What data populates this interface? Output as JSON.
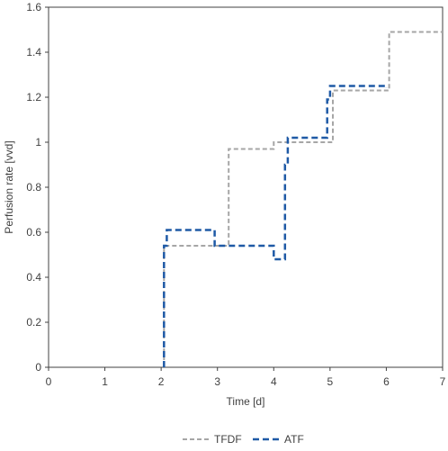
{
  "chart_data": {
    "type": "line",
    "title": "",
    "xlabel": "Time [d]",
    "ylabel": "Perfusion rate [vvd]",
    "xlim": [
      0,
      7
    ],
    "ylim": [
      0,
      1.6
    ],
    "x_ticks": [
      "0",
      "1",
      "2",
      "3",
      "4",
      "5",
      "6",
      "7"
    ],
    "y_ticks": [
      "0",
      "0.2",
      "0.4",
      "0.6",
      "0.8",
      "1",
      "1.2",
      "1.4",
      "1.6"
    ],
    "grid": false,
    "legend_position": "bottom",
    "series": [
      {
        "name": "TFDF",
        "color": "#a6a6a6",
        "style": "dashed",
        "x": [
          2.05,
          2.05,
          3.2,
          3.2,
          4.0,
          4.0,
          5.05,
          5.05,
          6.05,
          6.05,
          7.0
        ],
        "y": [
          0,
          0.54,
          0.54,
          0.97,
          0.97,
          1.0,
          1.0,
          1.23,
          1.23,
          1.49,
          1.49
        ]
      },
      {
        "name": "ATF",
        "color": "#1f5aa6",
        "style": "dashed",
        "x": [
          2.05,
          2.05,
          2.1,
          2.1,
          2.95,
          2.95,
          4.0,
          4.0,
          4.2,
          4.2,
          4.25,
          4.25,
          4.95,
          4.95,
          5.0,
          5.0,
          6.0,
          6.0
        ],
        "y": [
          0,
          0.54,
          0.54,
          0.61,
          0.61,
          0.54,
          0.54,
          0.48,
          0.48,
          0.9,
          0.9,
          1.02,
          1.02,
          1.19,
          1.19,
          1.25,
          1.25,
          1.24
        ]
      }
    ]
  }
}
